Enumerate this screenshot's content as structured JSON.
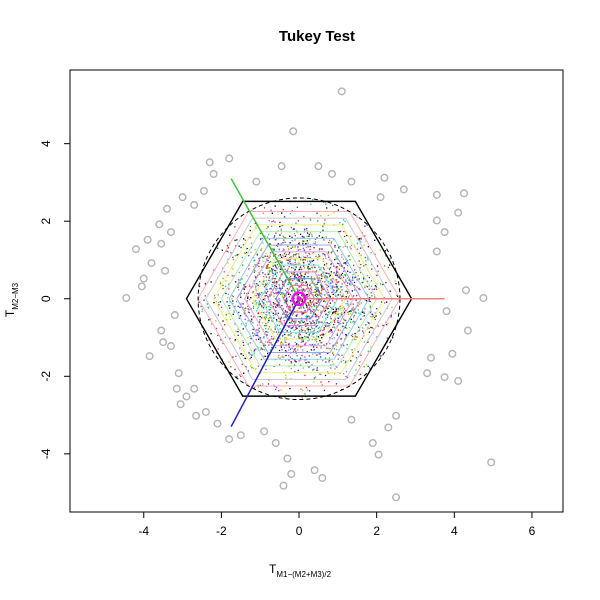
{
  "chart_data": {
    "type": "scatter",
    "title": "Tukey Test",
    "xlabel": {
      "main": "T",
      "subscript": "M1−(M2+M3)/2"
    },
    "ylabel": {
      "main": "T",
      "subscript": "M2−M3"
    },
    "xlim": [
      -5.9,
      6.8
    ],
    "ylim": [
      -5.5,
      5.9
    ],
    "x_ticks": [
      -4,
      -2,
      0,
      2,
      4,
      6
    ],
    "y_ticks": [
      -4,
      -2,
      0,
      2,
      4
    ],
    "x_tick_labels": [
      "-4",
      "-2",
      "0",
      "2",
      "4",
      "6"
    ],
    "y_tick_labels": [
      "-4",
      "-2",
      "0",
      "2",
      "4"
    ],
    "grid": false,
    "outlier_points": {
      "color": "#b4b4b4",
      "marker": "open-circle",
      "points": [
        [
          1.1,
          5.35
        ],
        [
          -0.15,
          4.32
        ],
        [
          -1.8,
          3.62
        ],
        [
          -2.2,
          3.22
        ],
        [
          -2.45,
          2.78
        ],
        [
          -3.0,
          2.62
        ],
        [
          -3.4,
          2.32
        ],
        [
          -3.9,
          1.52
        ],
        [
          -3.55,
          1.42
        ],
        [
          -4.2,
          1.28
        ],
        [
          -3.8,
          0.92
        ],
        [
          -3.45,
          0.72
        ],
        [
          -4.0,
          0.52
        ],
        [
          -4.05,
          0.32
        ],
        [
          -4.45,
          0.02
        ],
        [
          -3.2,
          -0.42
        ],
        [
          -3.55,
          -0.82
        ],
        [
          -3.5,
          -1.12
        ],
        [
          -3.85,
          -1.48
        ],
        [
          -3.1,
          -1.92
        ],
        [
          -3.15,
          -2.32
        ],
        [
          -2.9,
          -2.52
        ],
        [
          -3.05,
          -2.72
        ],
        [
          -2.65,
          -3.02
        ],
        [
          -2.1,
          -3.22
        ],
        [
          -1.8,
          -3.62
        ],
        [
          -1.5,
          -3.52
        ],
        [
          -0.9,
          -3.42
        ],
        [
          -0.6,
          -3.72
        ],
        [
          -0.3,
          -4.12
        ],
        [
          -0.2,
          -4.52
        ],
        [
          0.4,
          -4.42
        ],
        [
          0.6,
          -4.62
        ],
        [
          -0.4,
          -4.82
        ],
        [
          2.5,
          -5.12
        ],
        [
          4.95,
          -4.22
        ],
        [
          4.1,
          -2.12
        ],
        [
          3.75,
          -2.02
        ],
        [
          3.3,
          -1.92
        ],
        [
          2.05,
          -4.02
        ],
        [
          3.4,
          -1.52
        ],
        [
          4.35,
          -0.82
        ],
        [
          3.8,
          -0.32
        ],
        [
          4.3,
          0.22
        ],
        [
          3.55,
          1.22
        ],
        [
          3.75,
          1.72
        ],
        [
          3.55,
          2.02
        ],
        [
          4.1,
          2.22
        ],
        [
          4.25,
          2.72
        ],
        [
          3.55,
          2.68
        ],
        [
          2.7,
          2.82
        ],
        [
          2.2,
          3.12
        ],
        [
          1.35,
          3.02
        ],
        [
          0.85,
          3.22
        ],
        [
          0.5,
          3.42
        ],
        [
          -0.45,
          3.42
        ],
        [
          -1.1,
          3.02
        ],
        [
          2.3,
          -3.32
        ],
        [
          1.9,
          -3.72
        ],
        [
          1.35,
          -3.12
        ],
        [
          -2.4,
          -2.92
        ],
        [
          -3.3,
          -1.22
        ],
        [
          -3.6,
          1.92
        ],
        [
          -2.3,
          3.52
        ],
        [
          4.75,
          0.02
        ],
        [
          2.1,
          2.62
        ],
        [
          -2.7,
          2.42
        ],
        [
          -3.3,
          1.72
        ],
        [
          3.95,
          -1.42
        ],
        [
          2.5,
          -3.02
        ],
        [
          -2.7,
          -2.32
        ]
      ]
    },
    "contour_levels": [
      {
        "radius": 2.6,
        "color": "#ffb0b0"
      },
      {
        "radius": 2.4,
        "color": "#c8c8c8"
      },
      {
        "radius": 2.2,
        "color": "#f0f080"
      },
      {
        "radius": 2.0,
        "color": "#b0f0b0"
      },
      {
        "radius": 1.8,
        "color": "#90d0f0"
      },
      {
        "radius": 1.6,
        "color": "#a0a0f0"
      },
      {
        "radius": 1.4,
        "color": "#f0a0f0"
      },
      {
        "radius": 1.2,
        "color": "#f0f080"
      },
      {
        "radius": 1.0,
        "color": "#80e0e0"
      },
      {
        "radius": 0.8,
        "color": "#e080e0"
      },
      {
        "radius": 0.6,
        "color": "#8080f0"
      },
      {
        "radius": 0.4,
        "color": "#f060a0"
      },
      {
        "radius": 0.2,
        "color": "#f040f0"
      }
    ],
    "dense_scatter": {
      "count": 2600,
      "spread": 1.05,
      "colors": [
        "#e02020",
        "#2020e0",
        "#20a020",
        "#e020e0",
        "#20c0c0",
        "#c0c000",
        "#909090",
        "#000000"
      ]
    },
    "outer_hexagon": {
      "radius": 2.9,
      "color": "#000000",
      "style": "solid"
    },
    "dashed_circle": {
      "radius": 2.6,
      "color": "#000000",
      "style": "dashed"
    },
    "direction_arrows": [
      {
        "color": "#f08080",
        "end": [
          3.75,
          0.0
        ]
      },
      {
        "color": "#40c040",
        "end": [
          -1.75,
          3.1
        ]
      },
      {
        "color": "#2020c0",
        "end": [
          -1.75,
          -3.3
        ]
      }
    ],
    "center_marker": {
      "x": 0.0,
      "y": 0.0,
      "color": "#ff00ff"
    }
  }
}
